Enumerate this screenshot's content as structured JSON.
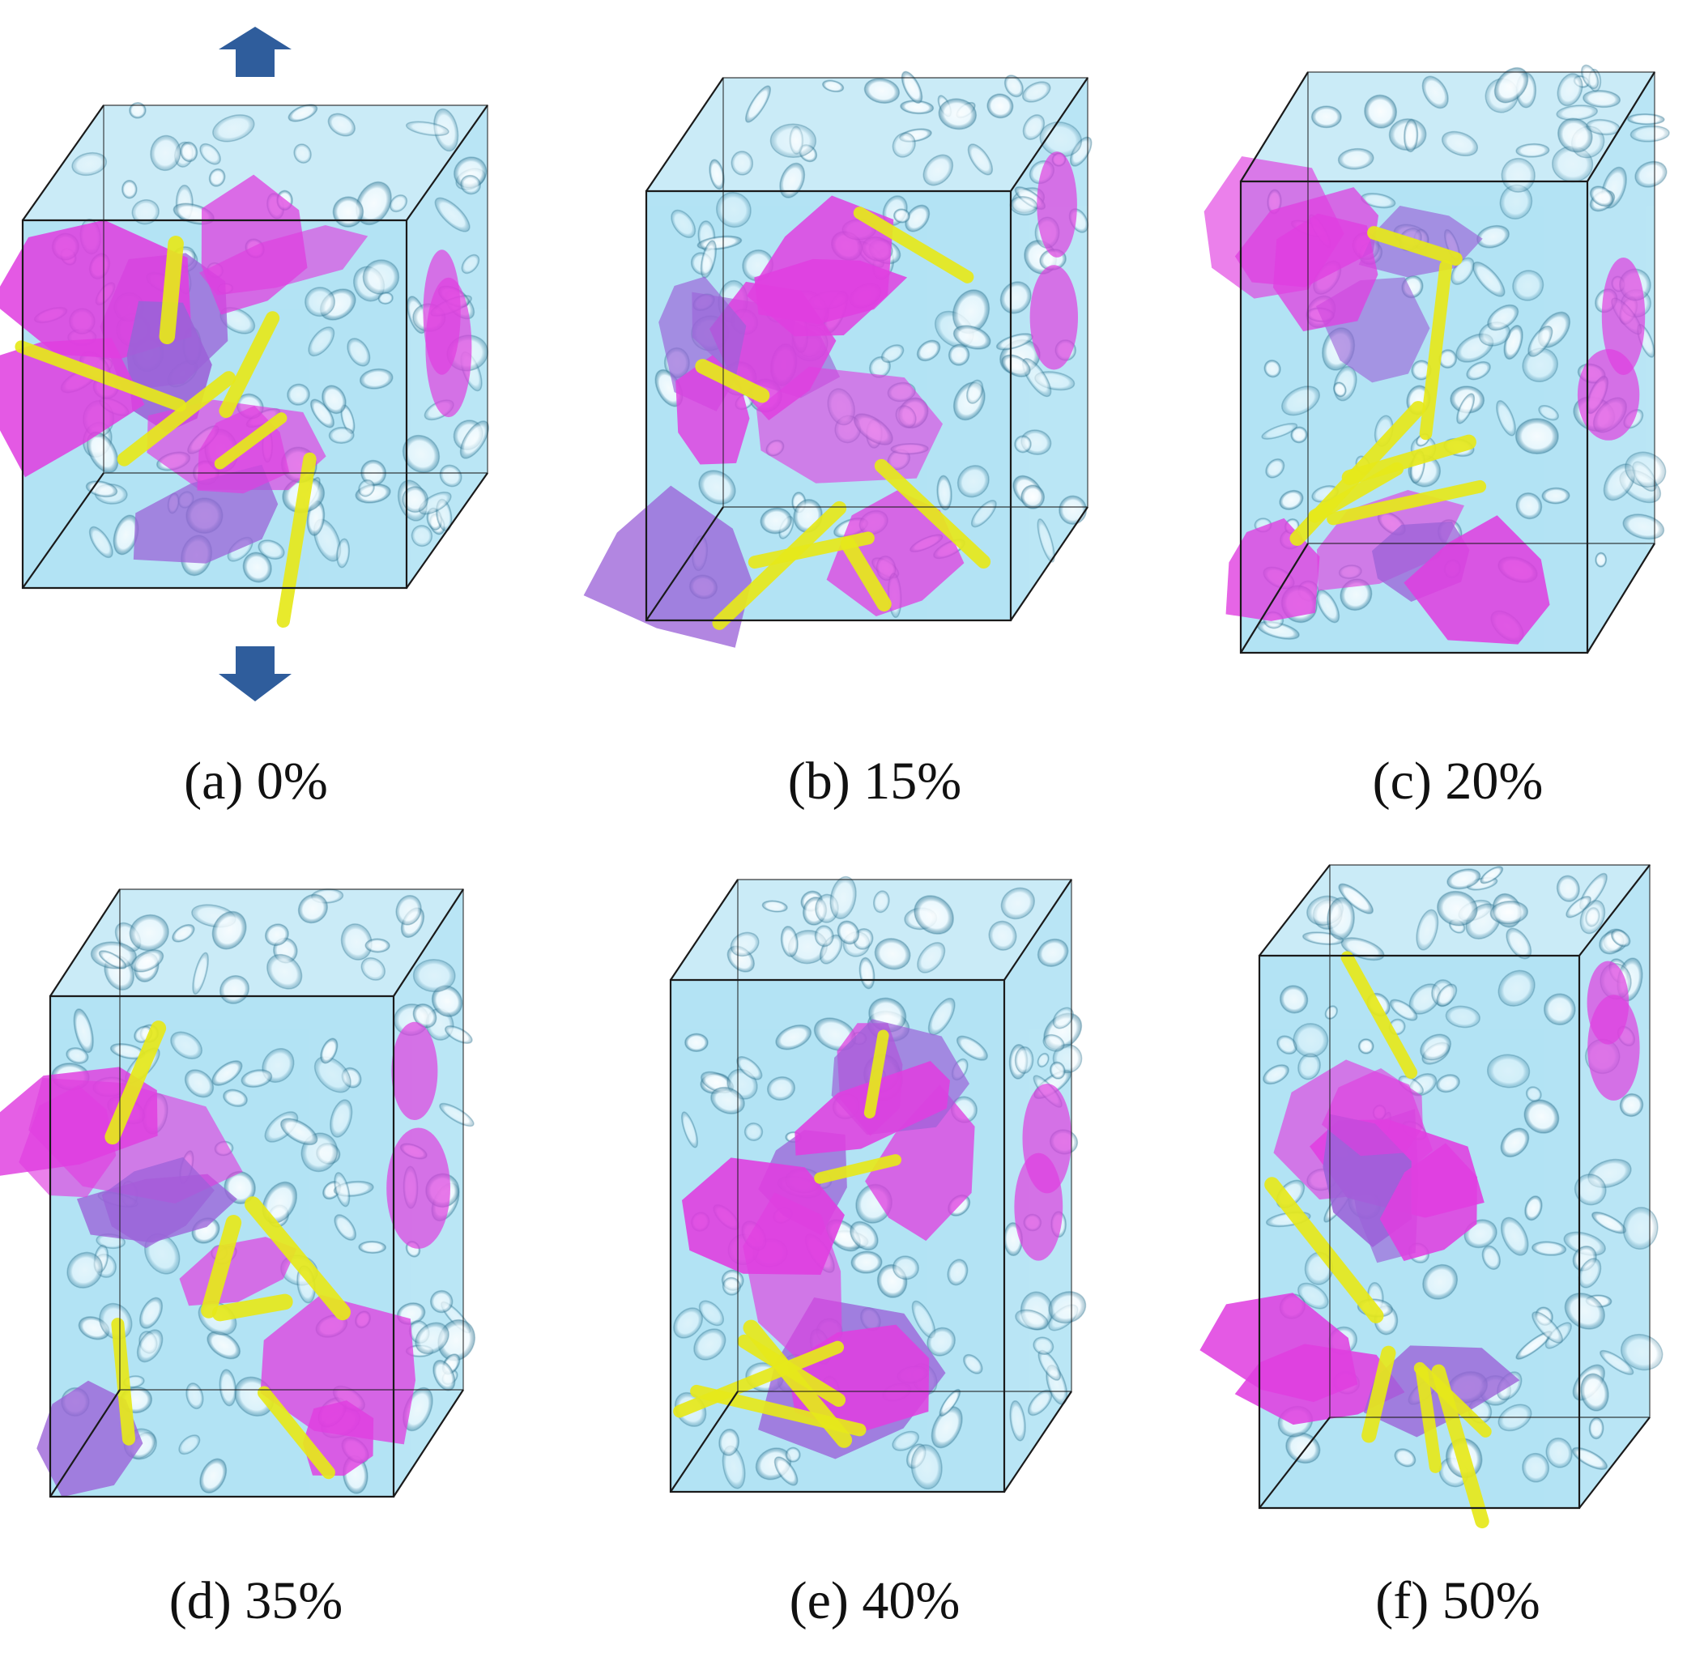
{
  "colors": {
    "foam": "#55c0e6",
    "foam_edge": "#3b7d99",
    "pore": "#ffffff",
    "crack_surface": "#e03ee0",
    "crack_fill": "#9b62d8",
    "fiber": "#e6e81a",
    "box_line": "#1a1a1a",
    "arrow": "#2f5d9c"
  },
  "icons": {
    "load_arrow_up": "arrow-up-icon",
    "load_arrow_down": "arrow-down-icon"
  },
  "panels": [
    {
      "id": "a",
      "caption": "(a) 0%",
      "strain_percent": 0
    },
    {
      "id": "b",
      "caption": "(b) 15%",
      "strain_percent": 15
    },
    {
      "id": "c",
      "caption": "(c) 20%",
      "strain_percent": 20
    },
    {
      "id": "d",
      "caption": "(d) 35%",
      "strain_percent": 35
    },
    {
      "id": "e",
      "caption": "(e) 40%",
      "strain_percent": 40
    },
    {
      "id": "f",
      "caption": "(f) 50%",
      "strain_percent": 50
    }
  ]
}
